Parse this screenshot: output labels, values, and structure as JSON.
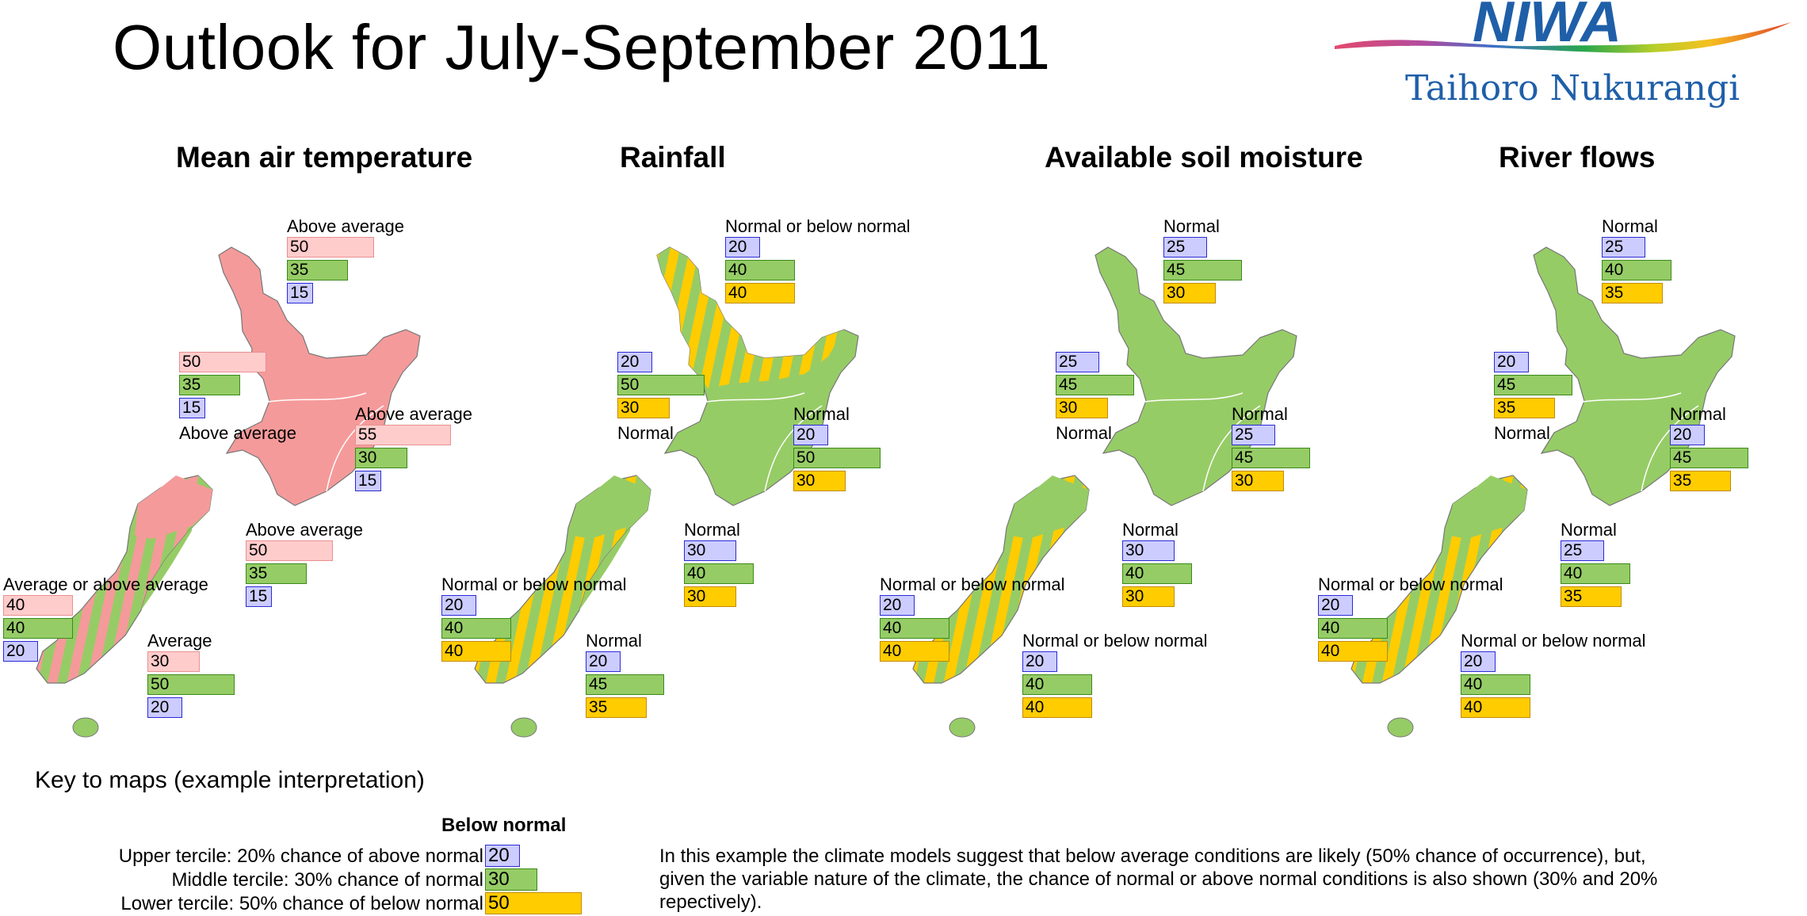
{
  "header": {
    "title": "Outlook for July-September 2011",
    "logo_text": "NIWA",
    "logo_subtitle": "Taihoro Nukurangi"
  },
  "colors": {
    "below": "#ffcc00",
    "normal": "#96cc66",
    "above_blue": "#ccccff",
    "above_temp": "#ffcccc",
    "temp_fill": "#f59a9a"
  },
  "maps": [
    {
      "title": "Mean air temperature",
      "regions": [
        {
          "label": "Above average",
          "values": [
            "50",
            "35",
            "15"
          ]
        },
        {
          "label": "Above average",
          "values": [
            "50",
            "35",
            "15"
          ]
        },
        {
          "label": "Above average",
          "values": [
            "55",
            "30",
            "15"
          ]
        },
        {
          "label": "Above average",
          "values": [
            "50",
            "35",
            "15"
          ]
        },
        {
          "label": "Average or above average",
          "values": [
            "40",
            "40",
            "20"
          ]
        },
        {
          "label": "Average",
          "values": [
            "30",
            "50",
            "20"
          ]
        }
      ]
    },
    {
      "title": "Rainfall",
      "regions": [
        {
          "label": "Normal or below normal",
          "values": [
            "20",
            "40",
            "40"
          ]
        },
        {
          "label": "Normal",
          "values": [
            "20",
            "50",
            "30"
          ]
        },
        {
          "label": "Normal",
          "values": [
            "20",
            "50",
            "30"
          ]
        },
        {
          "label": "Normal",
          "values": [
            "30",
            "40",
            "30"
          ]
        },
        {
          "label": "Normal or below normal",
          "values": [
            "20",
            "40",
            "40"
          ]
        },
        {
          "label": "Normal",
          "values": [
            "20",
            "45",
            "35"
          ]
        }
      ]
    },
    {
      "title": "Available soil moisture",
      "regions": [
        {
          "label": "Normal",
          "values": [
            "25",
            "45",
            "30"
          ]
        },
        {
          "label": "Normal",
          "values": [
            "25",
            "45",
            "30"
          ]
        },
        {
          "label": "Normal",
          "values": [
            "25",
            "45",
            "30"
          ]
        },
        {
          "label": "Normal",
          "values": [
            "30",
            "40",
            "30"
          ]
        },
        {
          "label": "Normal or below normal",
          "values": [
            "20",
            "40",
            "40"
          ]
        },
        {
          "label": "Normal or below normal",
          "values": [
            "20",
            "40",
            "40"
          ]
        }
      ]
    },
    {
      "title": "River flows",
      "regions": [
        {
          "label": "Normal",
          "values": [
            "25",
            "40",
            "35"
          ]
        },
        {
          "label": "Normal",
          "values": [
            "20",
            "45",
            "35"
          ]
        },
        {
          "label": "Normal",
          "values": [
            "20",
            "45",
            "35"
          ]
        },
        {
          "label": "Normal",
          "values": [
            "25",
            "40",
            "35"
          ]
        },
        {
          "label": "Normal or below normal",
          "values": [
            "20",
            "40",
            "40"
          ]
        },
        {
          "label": "Normal or below normal",
          "values": [
            "20",
            "40",
            "40"
          ]
        }
      ]
    }
  ],
  "key": {
    "title": "Key to maps (example interpretation)",
    "heading": "Below normal",
    "rows": [
      {
        "text": "Upper tercile: 20% chance of above normal",
        "value": "20"
      },
      {
        "text": "Middle tercile: 30% chance of normal",
        "value": "30"
      },
      {
        "text": "Lower tercile: 50% chance of below normal",
        "value": "50"
      }
    ],
    "note": "In this example the climate models suggest that below average conditions are likely (50% chance of occurrence), but, given the variable nature of the climate, the chance of normal or above normal conditions is also shown (30% and 20% repectively)."
  }
}
